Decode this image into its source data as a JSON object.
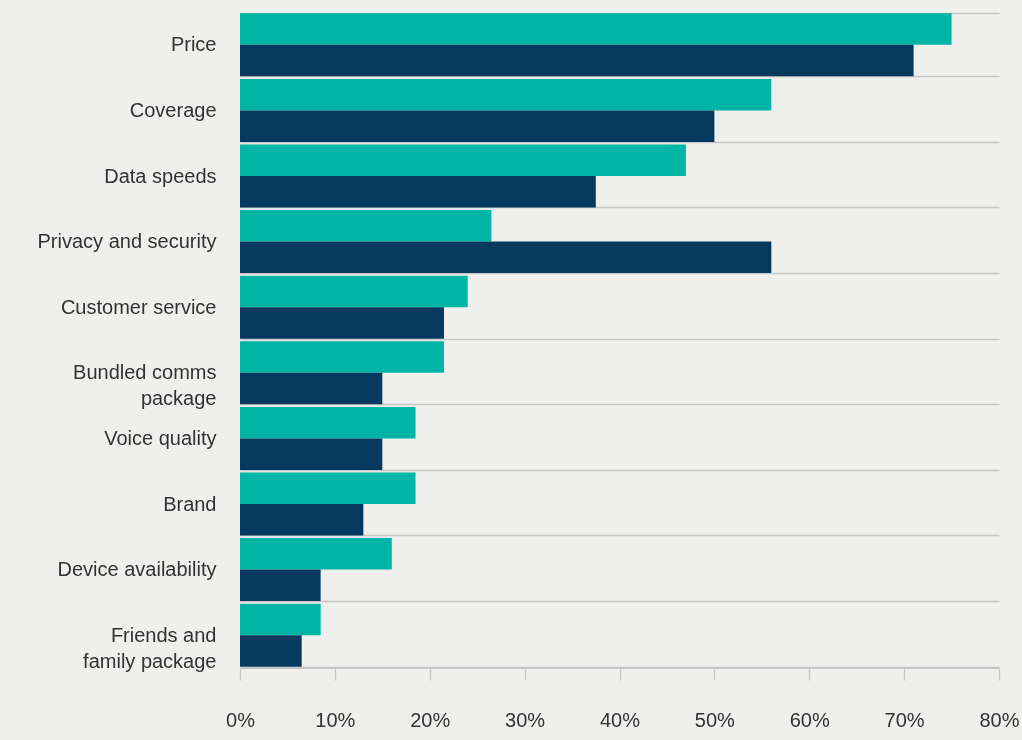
{
  "chart_data": {
    "type": "bar",
    "orientation": "horizontal",
    "categories": [
      "Price",
      "Coverage",
      "Data speeds",
      "Privacy and security",
      "Customer service",
      "Bundled comms package",
      "Voice quality",
      "Brand",
      "Device availability",
      "Friends and family package"
    ],
    "series": [
      {
        "color": "#00b5a5",
        "values": [
          75,
          56,
          47,
          26.5,
          24,
          21.5,
          18.5,
          18.5,
          16,
          8.5
        ]
      },
      {
        "color": "#053a5e",
        "values": [
          71,
          50,
          37.5,
          56,
          21.5,
          15,
          15,
          13,
          8.5,
          6.5
        ]
      }
    ],
    "xlim": [
      0,
      80
    ],
    "xticks": [
      {
        "value": 0,
        "label": "0%"
      },
      {
        "value": 10,
        "label": "10%"
      },
      {
        "value": 20,
        "label": "20%"
      },
      {
        "value": 30,
        "label": "30%"
      },
      {
        "value": 40,
        "label": "40%"
      },
      {
        "value": 50,
        "label": "50%"
      },
      {
        "value": 60,
        "label": "60%"
      },
      {
        "value": 70,
        "label": "70%"
      },
      {
        "value": 80,
        "label": "80%"
      }
    ],
    "grid": "y"
  }
}
